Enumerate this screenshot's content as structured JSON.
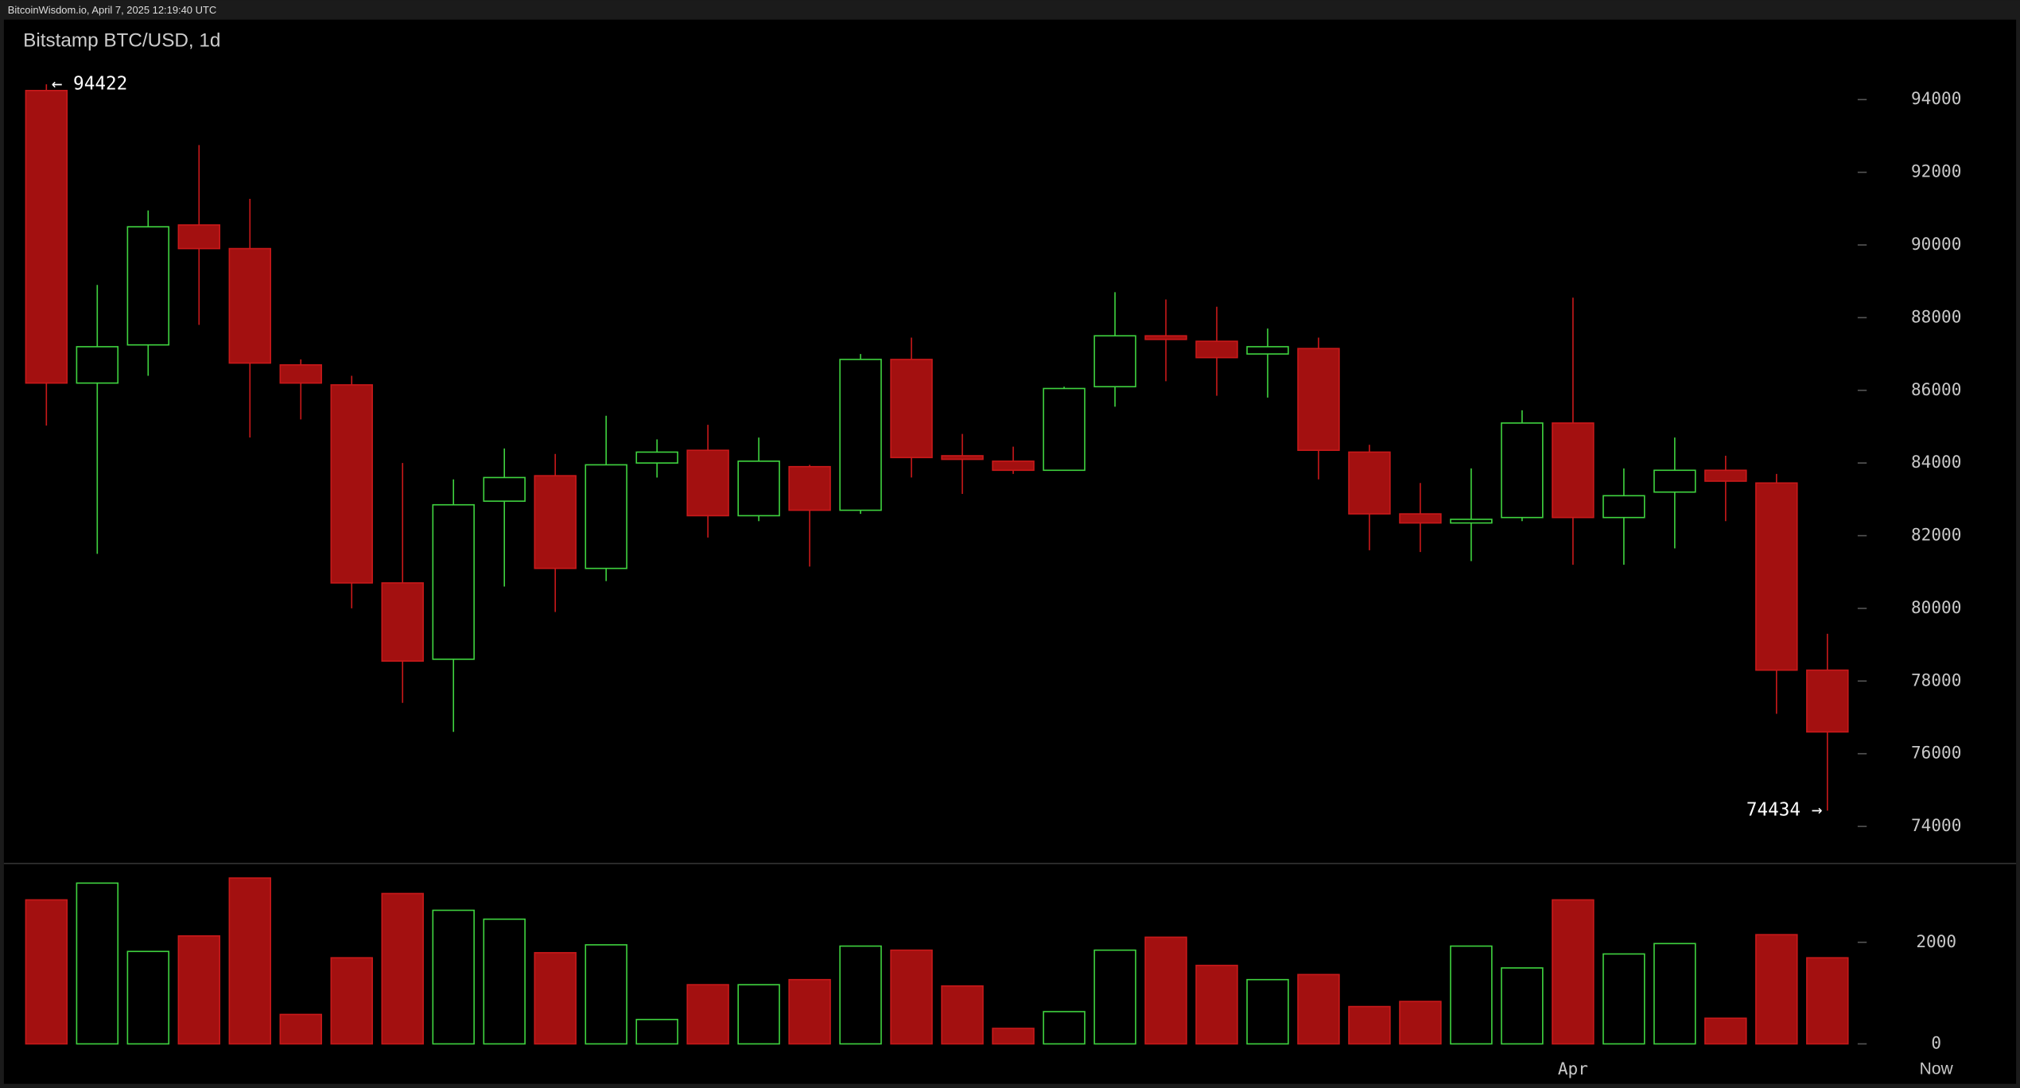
{
  "header": "BitcoinWisdom.io, April 7, 2025 12:19:40 UTC",
  "chart_data": {
    "type": "candlestick",
    "title": "Bitstamp BTC/USD, 1d",
    "categories": [
      null,
      null,
      null,
      null,
      null,
      null,
      null,
      null,
      null,
      null,
      null,
      null,
      null,
      null,
      null,
      null,
      null,
      null,
      null,
      null,
      null,
      null,
      null,
      null,
      null,
      null,
      null,
      null,
      null,
      null,
      "Apr",
      null,
      null,
      null,
      null,
      null
    ],
    "now_label": "Now",
    "open": [
      94250,
      86200,
      87250,
      90550,
      89900,
      86700,
      86150,
      80700,
      78600,
      82950,
      83650,
      81100,
      84000,
      84350,
      82550,
      83900,
      82700,
      86850,
      84200,
      84050,
      83800,
      86100,
      87500,
      87350,
      87000,
      87150,
      84300,
      82600,
      82350,
      82500,
      85100,
      82500,
      83200,
      83800,
      83450,
      78300
    ],
    "high": [
      94422,
      88900,
      90950,
      92750,
      91270,
      86850,
      86400,
      84000,
      83550,
      84400,
      84250,
      85300,
      84650,
      85050,
      84700,
      83950,
      87000,
      87450,
      84800,
      84450,
      86100,
      88700,
      88500,
      88300,
      87700,
      87450,
      84500,
      83450,
      83850,
      85450,
      88550,
      83850,
      84700,
      84200,
      83700,
      79300
    ],
    "low": [
      85030,
      81500,
      86400,
      87800,
      84700,
      85200,
      80000,
      77400,
      76600,
      80600,
      79900,
      80750,
      83600,
      81950,
      82400,
      81150,
      82600,
      83600,
      83150,
      83700,
      83800,
      85550,
      86250,
      85850,
      85800,
      83550,
      81600,
      81550,
      81300,
      82400,
      81200,
      81200,
      81650,
      82400,
      77100,
      74434
    ],
    "close": [
      86200,
      87200,
      90500,
      89900,
      86750,
      86200,
      80700,
      78550,
      82850,
      83600,
      81100,
      83950,
      84300,
      82550,
      84050,
      82700,
      86850,
      84150,
      84100,
      83800,
      86050,
      87500,
      87400,
      86900,
      87200,
      84350,
      82600,
      82350,
      82450,
      85100,
      82500,
      83100,
      83800,
      83500,
      78300,
      76600
    ],
    "volume": [
      2835,
      3165,
      1820,
      2125,
      3265,
      580,
      1695,
      2960,
      2630,
      2455,
      1795,
      1950,
      480,
      1165,
      1165,
      1265,
      1925,
      1845,
      1140,
      305,
      635,
      1845,
      2100,
      1545,
      1265,
      1365,
      735,
      835,
      1925,
      1495,
      2835,
      1770,
      1975,
      505,
      2150,
      1695
    ],
    "up_color": "#3fd23f",
    "down_color": "#a31010",
    "down_edge_color": "#c8191a",
    "annotations": [
      "← 94422",
      "74434 →"
    ],
    "ylim": [
      73050,
      96200
    ],
    "yticks": [
      74000,
      76000,
      78000,
      80000,
      82000,
      84000,
      86000,
      88000,
      90000,
      92000,
      94000
    ],
    "y2lim": [
      0,
      3500
    ],
    "y2ticks": [
      0,
      2000
    ]
  }
}
